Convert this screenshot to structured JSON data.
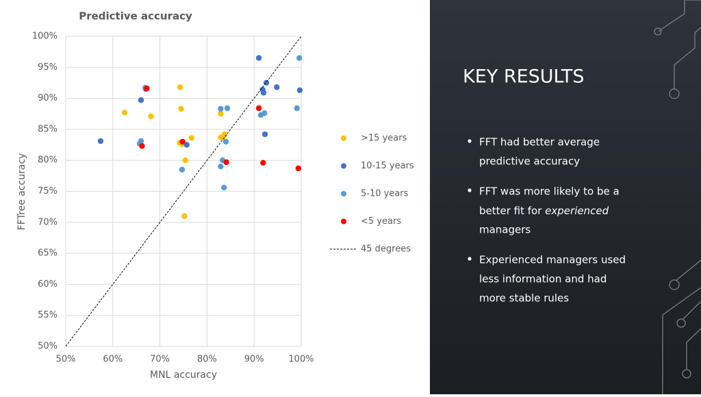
{
  "chart_data": {
    "type": "scatter",
    "title": "Predictive accuracy",
    "x_label": "MNL accuracy",
    "y_label": "FFTree accuracy",
    "xlim": [
      50,
      100
    ],
    "ylim": [
      50,
      100
    ],
    "xticks": [
      {
        "value": 50,
        "label": "50%"
      },
      {
        "value": 60,
        "label": "60%"
      },
      {
        "value": 70,
        "label": "70%"
      },
      {
        "value": 80,
        "label": "80%"
      },
      {
        "value": 90,
        "label": "90%"
      },
      {
        "value": 100,
        "label": "100%"
      }
    ],
    "yticks": [
      {
        "value": 50,
        "label": "50%"
      },
      {
        "value": 55,
        "label": "55%"
      },
      {
        "value": 60,
        "label": "60%"
      },
      {
        "value": 65,
        "label": "65%"
      },
      {
        "value": 70,
        "label": "70%"
      },
      {
        "value": 75,
        "label": "75%"
      },
      {
        "value": 80,
        "label": "80%"
      },
      {
        "value": 85,
        "label": "85%"
      },
      {
        "value": 90,
        "label": "90%"
      },
      {
        "value": 95,
        "label": "95%"
      },
      {
        "value": 100,
        "label": "100%"
      }
    ],
    "grid": true,
    "legend": "right",
    "series": [
      {
        "name": ">15 years",
        "color": "#ffc000",
        "type": "scatter",
        "x": [
          62.5,
          68.1,
          74.3,
          74.5,
          74.2,
          74.8,
          76.7,
          75.4,
          75.2,
          82.9,
          82.9,
          83.7,
          83.4
        ],
        "values": [
          87.7,
          87.1,
          91.8,
          88.3,
          82.8,
          82.6,
          83.6,
          80.0,
          71.0,
          83.7,
          87.5,
          84.2,
          83.7
        ]
      },
      {
        "name": "10-15 years",
        "color": "#4472c4",
        "type": "scatter",
        "x": [
          57.4,
          66.0,
          67.0,
          75.7,
          91.0,
          92.6,
          91.8,
          92.0,
          94.8,
          99.7,
          92.3
        ],
        "values": [
          83.1,
          89.7,
          91.5,
          82.5,
          96.5,
          92.5,
          91.4,
          90.9,
          91.8,
          91.3,
          84.2
        ]
      },
      {
        "name": "5-10 years",
        "color": "#5b9bd5",
        "type": "scatter",
        "x": [
          66.0,
          65.7,
          66.9,
          74.7,
          82.9,
          84.3,
          82.9,
          83.3,
          84.0,
          83.6,
          91.4,
          92.2,
          99.1,
          99.6
        ],
        "values": [
          83.1,
          82.7,
          91.7,
          78.5,
          88.3,
          88.4,
          79.0,
          80.0,
          83.0,
          75.6,
          87.3,
          87.6,
          88.4,
          96.5
        ]
      },
      {
        "name": "<5 years",
        "color": "#ff0000",
        "type": "scatter",
        "x": [
          67.2,
          66.2,
          74.8,
          84.1,
          91.0,
          91.9,
          99.4
        ],
        "values": [
          91.6,
          82.3,
          83.0,
          79.7,
          88.4,
          79.6,
          78.7
        ]
      },
      {
        "name": "45 degrees",
        "color": "#000000",
        "type": "line",
        "dashed": true,
        "x": [
          50,
          100
        ],
        "values": [
          50,
          100
        ]
      }
    ]
  },
  "slide": {
    "heading": "KEY RESULTS",
    "bullets": [
      [
        "FFT had better average",
        "predictive accuracy"
      ],
      [
        "FFT was more likely to be a",
        [
          "better fit for ",
          "experienced"
        ],
        "managers"
      ],
      [
        "Experienced managers used",
        "less information and had",
        "more stable rules"
      ]
    ]
  }
}
